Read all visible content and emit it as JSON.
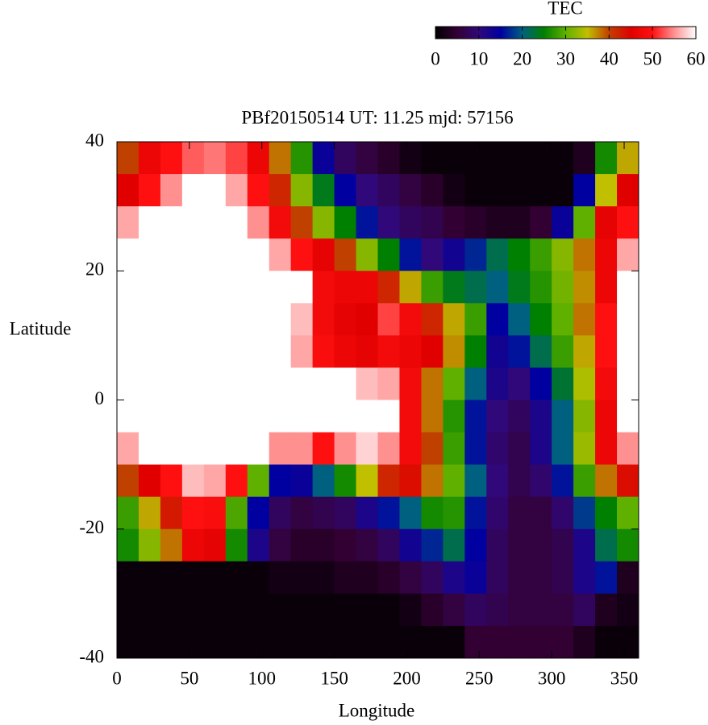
{
  "chart_data": {
    "type": "heatmap",
    "title": "PBf20150514  UT: 11.25  mjd: 57156",
    "xlabel": "Longitude",
    "ylabel": "Latitude",
    "colorbar_label": "TEC",
    "xlim": [
      0,
      360
    ],
    "xticks": [
      0,
      50,
      100,
      150,
      200,
      250,
      300,
      350
    ],
    "ylim": [
      -40,
      40
    ],
    "yticks": [
      -40,
      -20,
      0,
      20,
      40
    ],
    "zlim": [
      0,
      60
    ],
    "zticks": [
      0,
      10,
      20,
      30,
      40,
      50,
      60
    ],
    "colorscale": [
      [
        0,
        "#000000"
      ],
      [
        5,
        "#330033"
      ],
      [
        10,
        "#30087a"
      ],
      [
        15,
        "#0000a0"
      ],
      [
        20,
        "#006080"
      ],
      [
        25,
        "#008000"
      ],
      [
        30,
        "#60b000"
      ],
      [
        35,
        "#c0c000"
      ],
      [
        40,
        "#c04000"
      ],
      [
        45,
        "#e00000"
      ],
      [
        50,
        "#ff1010"
      ],
      [
        55,
        "#ff9090"
      ],
      [
        60,
        "#ffffff"
      ]
    ],
    "x": [
      7.5,
      22.5,
      37.5,
      52.5,
      67.5,
      82.5,
      97.5,
      112.5,
      127.5,
      142.5,
      157.5,
      172.5,
      187.5,
      202.5,
      217.5,
      232.5,
      247.5,
      262.5,
      277.5,
      292.5,
      307.5,
      322.5,
      337.5,
      352.5
    ],
    "y": [
      37.5,
      32.5,
      27.5,
      22.5,
      17.5,
      12.5,
      7.5,
      2.5,
      -2.5,
      -7.5,
      -12.5,
      -17.5,
      -22.5,
      -27.5,
      -32.5,
      -37.5
    ],
    "z": [
      [
        40,
        47,
        50,
        53,
        54,
        52,
        47,
        38,
        27,
        14,
        8,
        6,
        4,
        2,
        1,
        1,
        1,
        1,
        1,
        1,
        1,
        3,
        26,
        36
      ],
      [
        45,
        50,
        55,
        60,
        60,
        56,
        50,
        42,
        32,
        24,
        15,
        10,
        8,
        6,
        4,
        2,
        1,
        1,
        1,
        1,
        1,
        15,
        35,
        45
      ],
      [
        56,
        60,
        60,
        60,
        60,
        60,
        55,
        48,
        40,
        32,
        25,
        16,
        10,
        8,
        7,
        5,
        4,
        3,
        3,
        5,
        14,
        30,
        46,
        50
      ],
      [
        60,
        60,
        60,
        60,
        60,
        60,
        60,
        56,
        50,
        46,
        40,
        32,
        25,
        16,
        10,
        13,
        17,
        22,
        25,
        28,
        32,
        38,
        47,
        56
      ],
      [
        60,
        60,
        60,
        60,
        60,
        60,
        60,
        60,
        60,
        48,
        47,
        47,
        42,
        36,
        28,
        24,
        22,
        20,
        24,
        27,
        31,
        37,
        47,
        60
      ],
      [
        60,
        60,
        60,
        60,
        60,
        60,
        60,
        60,
        57,
        48,
        46,
        45,
        52,
        48,
        42,
        36,
        28,
        15,
        20,
        25,
        30,
        38,
        50,
        60
      ],
      [
        60,
        60,
        60,
        60,
        60,
        60,
        60,
        60,
        56,
        49,
        47,
        46,
        48,
        47,
        45,
        37,
        25,
        13,
        16,
        22,
        28,
        36,
        50,
        60
      ],
      [
        60,
        60,
        60,
        60,
        60,
        60,
        60,
        60,
        60,
        60,
        60,
        57,
        56,
        48,
        38,
        30,
        20,
        12,
        10,
        15,
        23,
        34,
        48,
        60
      ],
      [
        60,
        60,
        60,
        60,
        60,
        60,
        60,
        60,
        60,
        60,
        60,
        60,
        60,
        48,
        38,
        27,
        16,
        10,
        8,
        12,
        20,
        32,
        47,
        60
      ],
      [
        56,
        60,
        60,
        60,
        60,
        60,
        60,
        55,
        55,
        50,
        55,
        58,
        55,
        48,
        40,
        28,
        16,
        9,
        7,
        12,
        20,
        33,
        47,
        55
      ],
      [
        40,
        45,
        50,
        57,
        56,
        50,
        30,
        15,
        14,
        20,
        26,
        35,
        42,
        44,
        38,
        30,
        20,
        10,
        7,
        9,
        16,
        28,
        38,
        44
      ],
      [
        28,
        36,
        43,
        50,
        49,
        29,
        15,
        8,
        6,
        7,
        8,
        12,
        16,
        20,
        26,
        27,
        16,
        9,
        6,
        6,
        9,
        18,
        25,
        30
      ],
      [
        26,
        32,
        38,
        47,
        46,
        26,
        12,
        6,
        4,
        4,
        5,
        6,
        8,
        13,
        17,
        22,
        15,
        8,
        6,
        6,
        7,
        12,
        22,
        26
      ],
      [
        1,
        1,
        1,
        1,
        1,
        1,
        1,
        2,
        2,
        2,
        3,
        3,
        4,
        6,
        8,
        12,
        14,
        8,
        6,
        6,
        7,
        12,
        16,
        3
      ],
      [
        1,
        1,
        1,
        1,
        1,
        1,
        1,
        1,
        1,
        1,
        1,
        1,
        1,
        2,
        4,
        6,
        8,
        7,
        6,
        6,
        6,
        8,
        3,
        2
      ],
      [
        1,
        1,
        1,
        1,
        1,
        1,
        1,
        1,
        1,
        1,
        1,
        1,
        1,
        1,
        1,
        1,
        5,
        5,
        5,
        5,
        5,
        3,
        1,
        1
      ]
    ]
  }
}
